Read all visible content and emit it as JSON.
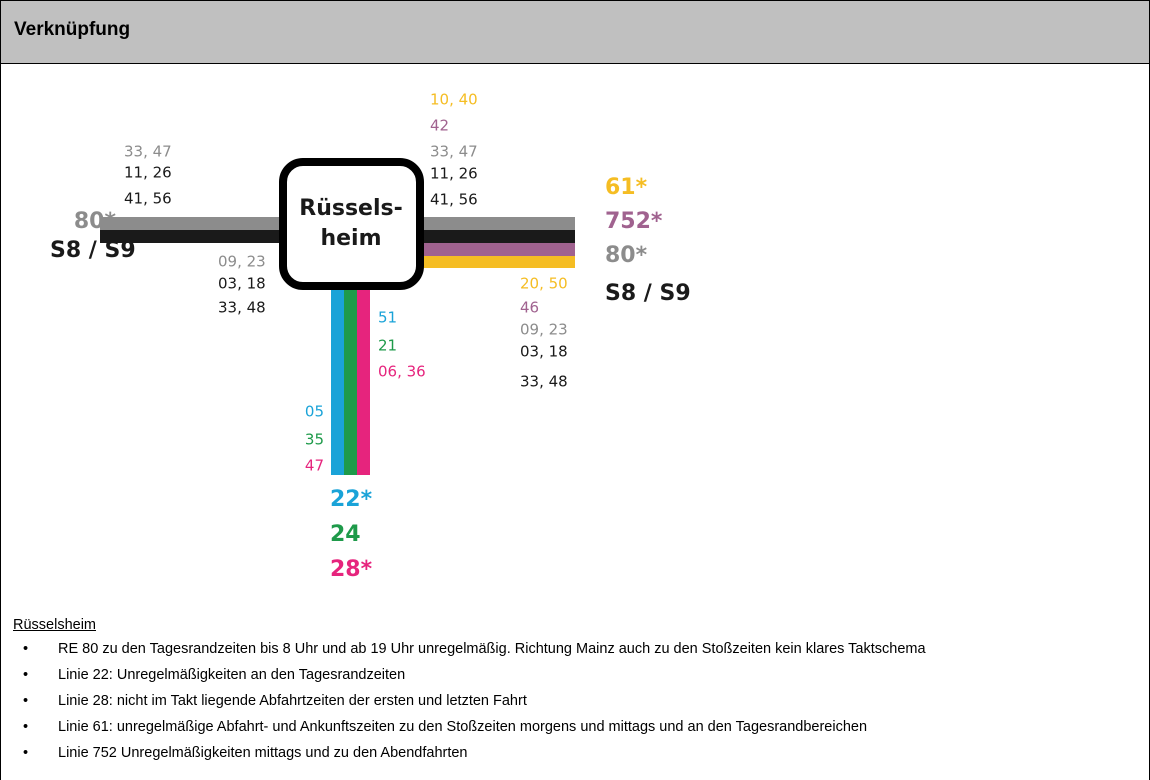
{
  "header": {
    "title": "Verknüpfung"
  },
  "station": {
    "lines": [
      "Rüssels-",
      "heim"
    ]
  },
  "west": {
    "destinations": [
      "80*",
      "S8 / S9"
    ],
    "times_above": [
      "33, 47",
      "11, 26",
      "41, 56"
    ],
    "times_below": [
      "09, 23",
      "03, 18",
      "33, 48"
    ]
  },
  "east": {
    "destinations": [
      "61*",
      "752*",
      "80*",
      "S8 / S9"
    ],
    "times_above": [
      "10, 40",
      "42",
      "33, 47",
      "11, 26",
      "41, 56"
    ],
    "times_below": [
      "20, 50",
      "46",
      "09, 23",
      "03, 18",
      "33, 48"
    ]
  },
  "south": {
    "destinations": [
      "22*",
      "24",
      "28*"
    ],
    "times_right": [
      "51",
      "21",
      "06, 36"
    ],
    "times_left": [
      "05",
      "35",
      "47"
    ]
  },
  "notes": {
    "heading": "Rüsselsheim",
    "items": [
      "RE 80 zu den Tagesrandzeiten bis 8 Uhr und ab 19 Uhr unregelmäßig. Richtung Mainz auch zu den Stoßzeiten kein klares Taktschema",
      "Linie 22: Unregelmäßigkeiten an den Tagesrandzeiten",
      "Linie 28: nicht im Takt liegende Abfahrtzeiten der ersten und letzten Fahrt",
      "Linie 61: unregelmäßige Abfahrt- und Ankunftszeiten zu den Stoßzeiten morgens und mittags und an den Tagesrandbereichen",
      "Linie 752 Unregelmäßigkeiten mittags und zu den Abendfahrten"
    ]
  }
}
